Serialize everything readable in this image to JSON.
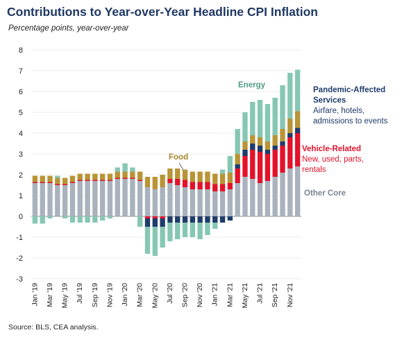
{
  "header": {
    "title": "Contributions to Year-over-Year Headline CPI Inflation",
    "subtitle": "Percentage points, year-over-year",
    "source": "Source: BLS, CEA analysis."
  },
  "annotations": {
    "energy": "Energy",
    "food": "Food",
    "pandemic_title_1": "Pandemic-Affected",
    "pandemic_title_2": "Services",
    "pandemic_desc_1": "Airfare, hotels,",
    "pandemic_desc_2": "admissions to events",
    "vehicle_title": "Vehicle-Related",
    "vehicle_desc_1": "New, used, parts,",
    "vehicle_desc_2": "rentals",
    "other_core": "Other Core"
  },
  "colors": {
    "other_core": "#a9b2bd",
    "vehicle": "#e3122a",
    "pandemic": "#1f3b6b",
    "food": "#b99436",
    "energy": "#86c7b4",
    "title": "#1f3864",
    "axis_text": "#222222",
    "gridline": "#e6e6e6",
    "zero_line": "#888888"
  },
  "chart_data": {
    "type": "bar",
    "stacked": true,
    "ylim": [
      -3,
      8
    ],
    "yticks": [
      -3,
      -2,
      -1,
      0,
      1,
      2,
      3,
      4,
      5,
      6,
      7,
      8
    ],
    "grid": true,
    "xtick_labels": [
      "Jan '19",
      "Mar '19",
      "May '19",
      "Jul '19",
      "Sep '19",
      "Nov '19",
      "Jan '20",
      "Mar '20",
      "May '20",
      "Jul '20",
      "Sep '20",
      "Nov '20",
      "Jan '21",
      "Mar '21",
      "May '21",
      "Jul '21",
      "Sep '21",
      "Nov '21"
    ],
    "categories": [
      "Jan '19",
      "Feb '19",
      "Mar '19",
      "Apr '19",
      "May '19",
      "Jun '19",
      "Jul '19",
      "Aug '19",
      "Sep '19",
      "Oct '19",
      "Nov '19",
      "Dec '19",
      "Jan '20",
      "Feb '20",
      "Mar '20",
      "Apr '20",
      "May '20",
      "Jun '20",
      "Jul '20",
      "Aug '20",
      "Sep '20",
      "Oct '20",
      "Nov '20",
      "Dec '20",
      "Jan '21",
      "Feb '21",
      "Mar '21",
      "Apr '21",
      "May '21",
      "Jun '21",
      "Jul '21",
      "Aug '21",
      "Sep '21",
      "Oct '21",
      "Nov '21",
      "Dec '21"
    ],
    "series": [
      {
        "name": "Other Core",
        "color_key": "other_core",
        "values": [
          1.6,
          1.6,
          1.6,
          1.5,
          1.5,
          1.6,
          1.7,
          1.7,
          1.7,
          1.7,
          1.7,
          1.8,
          1.8,
          1.8,
          1.7,
          1.4,
          1.3,
          1.4,
          1.6,
          1.5,
          1.4,
          1.3,
          1.3,
          1.3,
          1.2,
          1.2,
          1.3,
          1.6,
          1.9,
          1.8,
          1.6,
          1.7,
          1.9,
          2.1,
          2.3,
          2.4
        ]
      },
      {
        "name": "Vehicle-Related",
        "color_key": "vehicle",
        "values": [
          0.05,
          0.05,
          0.05,
          0.05,
          0.05,
          0.05,
          0.05,
          0.05,
          0.05,
          0.05,
          0.05,
          0.05,
          0.05,
          0.05,
          0.05,
          -0.1,
          -0.1,
          -0.1,
          0.2,
          0.3,
          0.35,
          0.35,
          0.35,
          0.35,
          0.35,
          0.35,
          0.3,
          0.7,
          1.0,
          1.4,
          1.5,
          1.3,
          1.3,
          1.3,
          1.5,
          1.6
        ]
      },
      {
        "name": "Pandemic-Affected Services",
        "color_key": "pandemic",
        "values": [
          0,
          0,
          0,
          0,
          0,
          0,
          0,
          0,
          0,
          0,
          0,
          0,
          0,
          0,
          0,
          -0.4,
          -0.4,
          -0.4,
          -0.3,
          -0.3,
          -0.3,
          -0.3,
          -0.3,
          -0.3,
          -0.3,
          -0.3,
          -0.2,
          0.2,
          0.3,
          0.3,
          0.3,
          0.2,
          0.2,
          0.2,
          0.2,
          0.25
        ]
      },
      {
        "name": "Food",
        "color_key": "food",
        "values": [
          0.3,
          0.3,
          0.3,
          0.3,
          0.3,
          0.3,
          0.3,
          0.3,
          0.3,
          0.3,
          0.3,
          0.3,
          0.3,
          0.3,
          0.4,
          0.5,
          0.6,
          0.6,
          0.5,
          0.5,
          0.5,
          0.5,
          0.5,
          0.5,
          0.5,
          0.5,
          0.5,
          0.5,
          0.4,
          0.4,
          0.4,
          0.4,
          0.5,
          0.6,
          0.7,
          0.8
        ]
      },
      {
        "name": "Energy",
        "color_key": "energy",
        "values": [
          -0.35,
          -0.35,
          -0.1,
          0.1,
          -0.1,
          -0.3,
          -0.3,
          -0.3,
          -0.3,
          -0.2,
          -0.1,
          0.2,
          0.4,
          0.2,
          -0.5,
          -1.3,
          -1.4,
          -1.0,
          -0.9,
          -0.8,
          -0.7,
          -0.7,
          -0.8,
          -0.6,
          -0.3,
          0.2,
          0.8,
          1.2,
          1.4,
          1.6,
          1.8,
          1.8,
          1.8,
          2.1,
          2.2,
          2.0
        ]
      }
    ]
  }
}
